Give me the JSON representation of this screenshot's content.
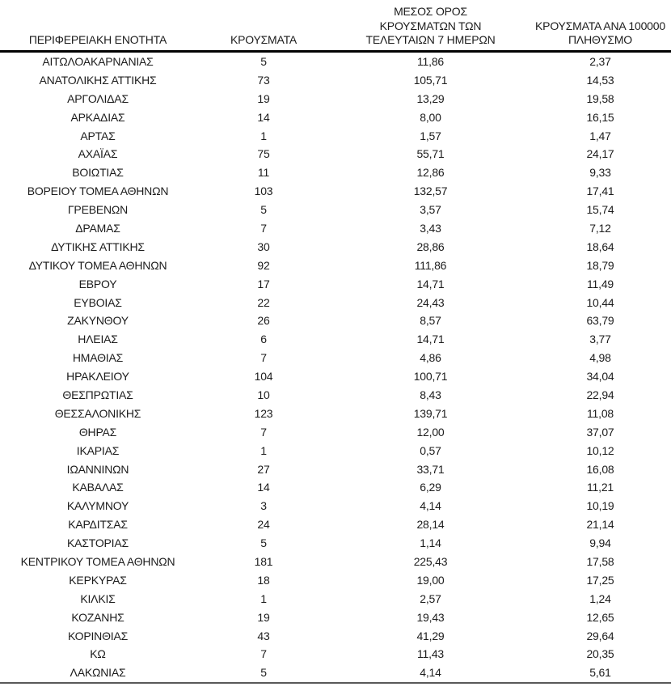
{
  "page": {
    "background": "#ffffff",
    "text_color": "#1c1c1c",
    "header_rule_color": "#000000",
    "bottom_rule_color": "#595959",
    "decimal_separator": ","
  },
  "table": {
    "columns": [
      {
        "id": "region",
        "label": "ΠΕΡΙΦΕΡΕΙΑΚΗ ΕΝΟΤΗΤΑ"
      },
      {
        "id": "cases",
        "label": "ΚΡΟΥΣΜΑΤΑ"
      },
      {
        "id": "avg7",
        "label": "ΜΕΣΟΣ ΟΡΟΣ\nΚΡΟΥΣΜΑΤΩΝ ΤΩΝ\nΤΕΛΕΥΤΑΙΩΝ 7 ΗΜΕΡΩΝ"
      },
      {
        "id": "per100k",
        "label": "ΚΡΟΥΣΜΑΤΑ ΑΝΑ 100000\nΠΛΗΘΥΣΜΟ"
      }
    ],
    "rows": [
      [
        "ΑΙΤΩΛΟΑΚΑΡΝΑΝΙΑΣ",
        "5",
        "11,86",
        "2,37"
      ],
      [
        "ΑΝΑΤΟΛΙΚΗΣ ΑΤΤΙΚΗΣ",
        "73",
        "105,71",
        "14,53"
      ],
      [
        "ΑΡΓΟΛΙΔΑΣ",
        "19",
        "13,29",
        "19,58"
      ],
      [
        "ΑΡΚΑΔΙΑΣ",
        "14",
        "8,00",
        "16,15"
      ],
      [
        "ΑΡΤΑΣ",
        "1",
        "1,57",
        "1,47"
      ],
      [
        "ΑΧΑΪΑΣ",
        "75",
        "55,71",
        "24,17"
      ],
      [
        "ΒΟΙΩΤΙΑΣ",
        "11",
        "12,86",
        "9,33"
      ],
      [
        "ΒΟΡΕΙΟΥ ΤΟΜΕΑ ΑΘΗΝΩΝ",
        "103",
        "132,57",
        "17,41"
      ],
      [
        "ΓΡΕΒΕΝΩΝ",
        "5",
        "3,57",
        "15,74"
      ],
      [
        "ΔΡΑΜΑΣ",
        "7",
        "3,43",
        "7,12"
      ],
      [
        "ΔΥΤΙΚΗΣ ΑΤΤΙΚΗΣ",
        "30",
        "28,86",
        "18,64"
      ],
      [
        "ΔΥΤΙΚΟΥ ΤΟΜΕΑ ΑΘΗΝΩΝ",
        "92",
        "111,86",
        "18,79"
      ],
      [
        "ΕΒΡΟΥ",
        "17",
        "14,71",
        "11,49"
      ],
      [
        "ΕΥΒΟΙΑΣ",
        "22",
        "24,43",
        "10,44"
      ],
      [
        "ΖΑΚΥΝΘΟΥ",
        "26",
        "8,57",
        "63,79"
      ],
      [
        "ΗΛΕΙΑΣ",
        "6",
        "14,71",
        "3,77"
      ],
      [
        "ΗΜΑΘΙΑΣ",
        "7",
        "4,86",
        "4,98"
      ],
      [
        "ΗΡΑΚΛΕΙΟΥ",
        "104",
        "100,71",
        "34,04"
      ],
      [
        "ΘΕΣΠΡΩΤΙΑΣ",
        "10",
        "8,43",
        "22,94"
      ],
      [
        "ΘΕΣΣΑΛΟΝΙΚΗΣ",
        "123",
        "139,71",
        "11,08"
      ],
      [
        "ΘΗΡΑΣ",
        "7",
        "12,00",
        "37,07"
      ],
      [
        "ΙΚΑΡΙΑΣ",
        "1",
        "0,57",
        "10,12"
      ],
      [
        "ΙΩΑΝΝΙΝΩΝ",
        "27",
        "33,71",
        "16,08"
      ],
      [
        "ΚΑΒΑΛΑΣ",
        "14",
        "6,29",
        "11,21"
      ],
      [
        "ΚΑΛΥΜΝΟΥ",
        "3",
        "4,14",
        "10,19"
      ],
      [
        "ΚΑΡΔΙΤΣΑΣ",
        "24",
        "28,14",
        "21,14"
      ],
      [
        "ΚΑΣΤΟΡΙΑΣ",
        "5",
        "1,14",
        "9,94"
      ],
      [
        "ΚΕΝΤΡΙΚΟΥ ΤΟΜΕΑ ΑΘΗΝΩΝ",
        "181",
        "225,43",
        "17,58"
      ],
      [
        "ΚΕΡΚΥΡΑΣ",
        "18",
        "19,00",
        "17,25"
      ],
      [
        "ΚΙΛΚΙΣ",
        "1",
        "2,57",
        "1,24"
      ],
      [
        "ΚΟΖΑΝΗΣ",
        "19",
        "19,43",
        "12,65"
      ],
      [
        "ΚΟΡΙΝΘΙΑΣ",
        "43",
        "41,29",
        "29,64"
      ],
      [
        "ΚΩ",
        "7",
        "11,43",
        "20,35"
      ],
      [
        "ΛΑΚΩΝΙΑΣ",
        "5",
        "4,14",
        "5,61"
      ]
    ]
  }
}
